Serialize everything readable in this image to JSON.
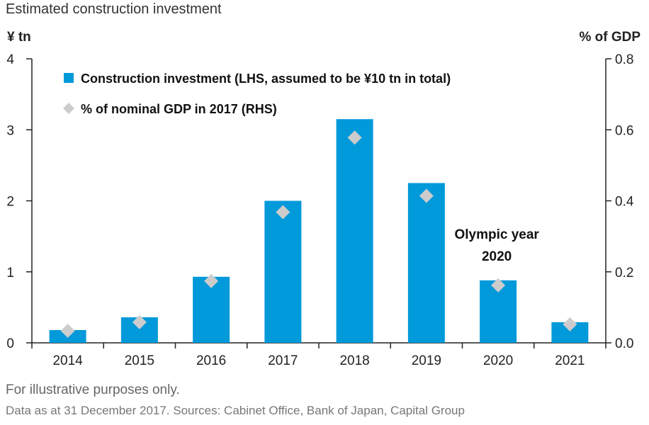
{
  "title": "Estimated construction investment",
  "footer_note": "For illustrative purposes only.",
  "footer_source": "Data as at 31 December 2017. Sources: Cabinet Office, Bank of Japan, Capital Group",
  "colors": {
    "bar": "#0099da",
    "marker": "#cccccc",
    "axis": "#222222"
  },
  "chart_data": {
    "type": "bar",
    "categories": [
      "2014",
      "2015",
      "2016",
      "2017",
      "2018",
      "2019",
      "2020",
      "2021"
    ],
    "series": [
      {
        "name": "Construction investment (LHS, assumed to be ¥10 tn in total)",
        "kind": "bar",
        "axis": "left",
        "values": [
          0.18,
          0.36,
          0.93,
          2.0,
          3.15,
          2.25,
          0.88,
          0.29
        ]
      },
      {
        "name": "% of nominal GDP in 2017 (RHS)",
        "kind": "marker",
        "axis": "right",
        "values": [
          0.034,
          0.058,
          0.174,
          0.368,
          0.578,
          0.414,
          0.162,
          0.052
        ]
      }
    ],
    "ylabel_left": "¥ tn",
    "ylabel_right": "% of GDP",
    "ylim_left": [
      0,
      4
    ],
    "ylim_right": [
      0,
      0.8
    ],
    "yticks_left": [
      "0",
      "1",
      "2",
      "3",
      "4"
    ],
    "yticks_right": [
      "0.0",
      "0.2",
      "0.4",
      "0.6",
      "0.8"
    ],
    "grid": false,
    "legend_position": "top-left",
    "annotation": {
      "category": "2020",
      "lines": [
        "Olympic year",
        "2020"
      ]
    }
  }
}
